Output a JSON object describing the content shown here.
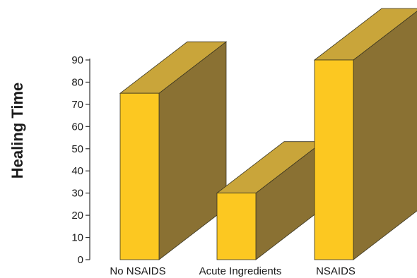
{
  "chart_data": {
    "type": "bar",
    "title": "",
    "xlabel": "",
    "ylabel": "Healing Time",
    "ylim": [
      0,
      90
    ],
    "yticks": [
      0,
      10,
      20,
      30,
      40,
      50,
      60,
      70,
      80,
      90
    ],
    "categories": [
      "No NSAIDS",
      "Acute Ingredients",
      "NSAIDS"
    ],
    "values": [
      75,
      30,
      90
    ],
    "grid": false,
    "style": "3d",
    "colors": {
      "front": "#FCC821",
      "top": "#C9A53A",
      "side": "#8A7133",
      "edge": "#3a3520",
      "axis": "#333333"
    }
  }
}
